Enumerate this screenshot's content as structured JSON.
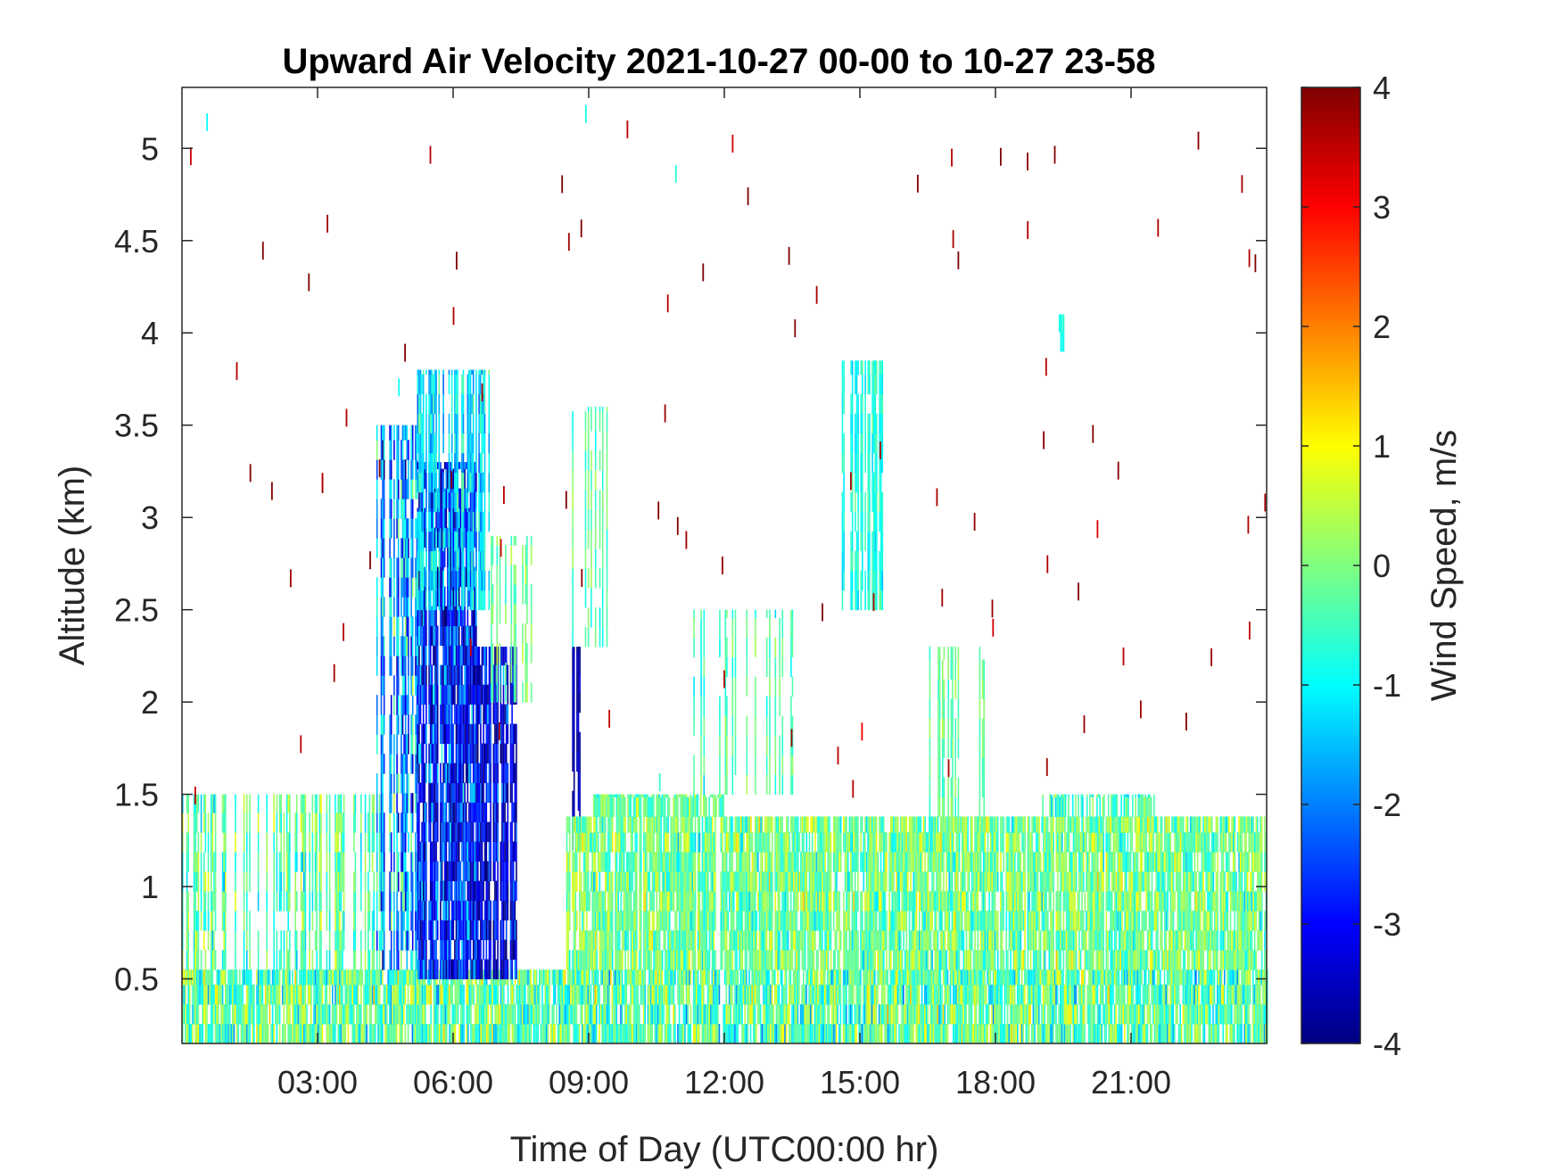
{
  "chart_data": {
    "type": "heatmap",
    "title": "Upward Air Velocity 2021-10-27 00-00 to 10-27 23-58",
    "xlabel": "Time of Day (UTC00:00 hr)",
    "ylabel": "Altitude (km)",
    "colorbar_label": "Wind Speed, m/s",
    "xlim": [
      0,
      24
    ],
    "ylim": [
      0.15,
      5.33
    ],
    "clim": [
      -4,
      4
    ],
    "colormap": "jet",
    "grid": false,
    "x_ticks": [
      3,
      6,
      9,
      12,
      15,
      18,
      21
    ],
    "x_tick_labels": [
      "03:00",
      "06:00",
      "09:00",
      "12:00",
      "15:00",
      "18:00",
      "21:00"
    ],
    "y_ticks": [
      0.5,
      1,
      1.5,
      2,
      2.5,
      3,
      3.5,
      4,
      4.5,
      5
    ],
    "y_tick_labels": [
      "0.5",
      "1",
      "1.5",
      "2",
      "2.5",
      "3",
      "3.5",
      "4",
      "4.5",
      "5"
    ],
    "cbar_ticks": [
      4,
      3,
      2,
      1,
      0,
      -1,
      -2,
      -3,
      -4
    ],
    "cbar_tick_labels": [
      "4",
      "3",
      "2",
      "1",
      "0",
      "-1",
      "-2",
      "-3",
      "-4"
    ],
    "regions": [
      {
        "x": [
          0,
          24
        ],
        "y": [
          0.15,
          0.55
        ],
        "mean": -0.3,
        "spread": 1.0,
        "density": 0.98
      },
      {
        "x": [
          0,
          4.5
        ],
        "y": [
          0.55,
          1.5
        ],
        "mean": -0.3,
        "spread": 0.8,
        "density": 0.45
      },
      {
        "x": [
          4.3,
          5.2
        ],
        "y": [
          0.55,
          3.5
        ],
        "mean": -1.8,
        "spread": 1.3,
        "density": 0.55
      },
      {
        "x": [
          5.2,
          6.5
        ],
        "y": [
          0.5,
          3.3
        ],
        "mean": -2.8,
        "spread": 1.2,
        "density": 0.9
      },
      {
        "x": [
          6.5,
          7.4
        ],
        "y": [
          0.5,
          2.3
        ],
        "mean": -3.2,
        "spread": 0.9,
        "density": 0.85
      },
      {
        "x": [
          5.2,
          6.8
        ],
        "y": [
          2.5,
          3.8
        ],
        "mean": -1.2,
        "spread": 0.7,
        "density": 0.55
      },
      {
        "x": [
          6.8,
          7.8
        ],
        "y": [
          2.0,
          2.9
        ],
        "mean": -0.2,
        "spread": 0.5,
        "density": 0.5
      },
      {
        "x": [
          8.6,
          8.8
        ],
        "y": [
          1.2,
          2.3
        ],
        "mean": -3.6,
        "spread": 0.3,
        "density": 0.9
      },
      {
        "x": [
          8.6,
          9.4
        ],
        "y": [
          2.3,
          3.6
        ],
        "mean": -0.3,
        "spread": 0.5,
        "density": 0.4
      },
      {
        "x": [
          8.5,
          24
        ],
        "y": [
          0.55,
          1.38
        ],
        "mean": -0.1,
        "spread": 0.8,
        "density": 0.95
      },
      {
        "x": [
          9,
          12
        ],
        "y": [
          1.38,
          1.5
        ],
        "mean": -0.2,
        "spread": 0.7,
        "density": 0.85
      },
      {
        "x": [
          11,
          13.5
        ],
        "y": [
          1.5,
          2.5
        ],
        "mean": -0.4,
        "spread": 0.5,
        "density": 0.25
      },
      {
        "x": [
          14.6,
          15.5
        ],
        "y": [
          2.5,
          3.85
        ],
        "mean": -0.8,
        "spread": 0.4,
        "density": 0.6
      },
      {
        "x": [
          16.5,
          17.8
        ],
        "y": [
          1.38,
          2.3
        ],
        "mean": -0.2,
        "spread": 0.4,
        "density": 0.4
      },
      {
        "x": [
          19.0,
          21.5
        ],
        "y": [
          1.38,
          1.5
        ],
        "mean": -0.5,
        "spread": 0.6,
        "density": 0.7
      },
      {
        "x": [
          19.4,
          19.5
        ],
        "y": [
          3.9,
          4.1
        ],
        "mean": -0.8,
        "spread": 0.1,
        "density": 1.0
      }
    ],
    "sparse_outliers": {
      "x": [
        0,
        24
      ],
      "y": [
        1.5,
        5.33
      ],
      "count": 95,
      "mean": 3.8,
      "spread": 0.4
    }
  }
}
